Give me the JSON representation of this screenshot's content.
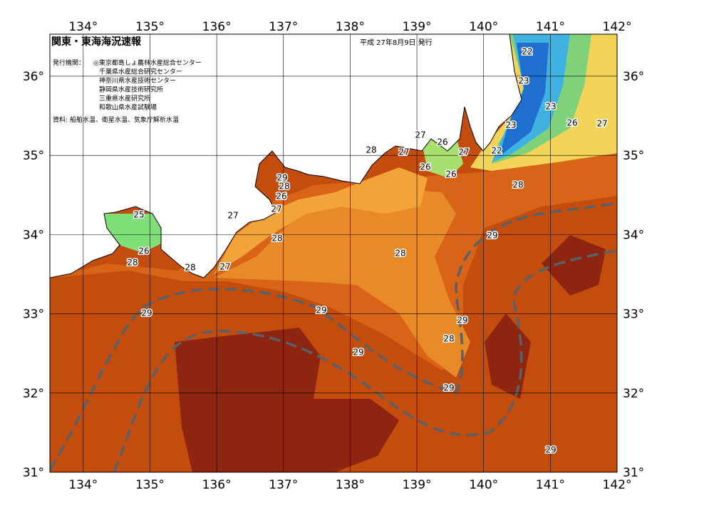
{
  "header": {
    "title": "関東・東海海況速報",
    "date": "平成 27年8月9日 発行",
    "issuers_label": "発行機関：",
    "issuers": [
      "◎東京都島しょ農林水産総合センター",
      "千葉県水産総合研究センター",
      "神奈川県水産技術センター",
      "静岡県水産技術研究所",
      "三重県水産研究所",
      "和歌山県水産試験場"
    ],
    "source": "資料: 船舶水温、衛星水温、気象庁解析水温"
  },
  "map": {
    "lon_range": [
      133.5,
      142
    ],
    "lat_range": [
      31,
      36.53
    ],
    "lon_ticks": [
      {
        "value": 134,
        "label": "134°"
      },
      {
        "value": 135,
        "label": "135°"
      },
      {
        "value": 136,
        "label": "136°"
      },
      {
        "value": 137,
        "label": "137°"
      },
      {
        "value": 138,
        "label": "138°"
      },
      {
        "value": 139,
        "label": "139°"
      },
      {
        "value": 140,
        "label": "140°"
      },
      {
        "value": 141,
        "label": "141°"
      },
      {
        "value": 142,
        "label": "142°"
      }
    ],
    "lat_ticks": [
      {
        "value": 31,
        "label": "31°"
      },
      {
        "value": 32,
        "label": "32°"
      },
      {
        "value": 33,
        "label": "33°"
      },
      {
        "value": 34,
        "label": "34°"
      },
      {
        "value": 35,
        "label": "35°"
      },
      {
        "value": 36,
        "label": "36°"
      }
    ],
    "contour_labels": [
      22,
      23,
      23,
      23,
      26,
      27,
      22,
      27,
      26,
      27,
      27,
      28,
      26,
      26,
      28,
      29,
      28,
      26,
      27,
      27,
      25,
      28,
      29,
      26,
      28,
      28,
      28,
      27,
      29,
      29,
      29,
      28,
      29,
      29,
      29
    ]
  }
}
